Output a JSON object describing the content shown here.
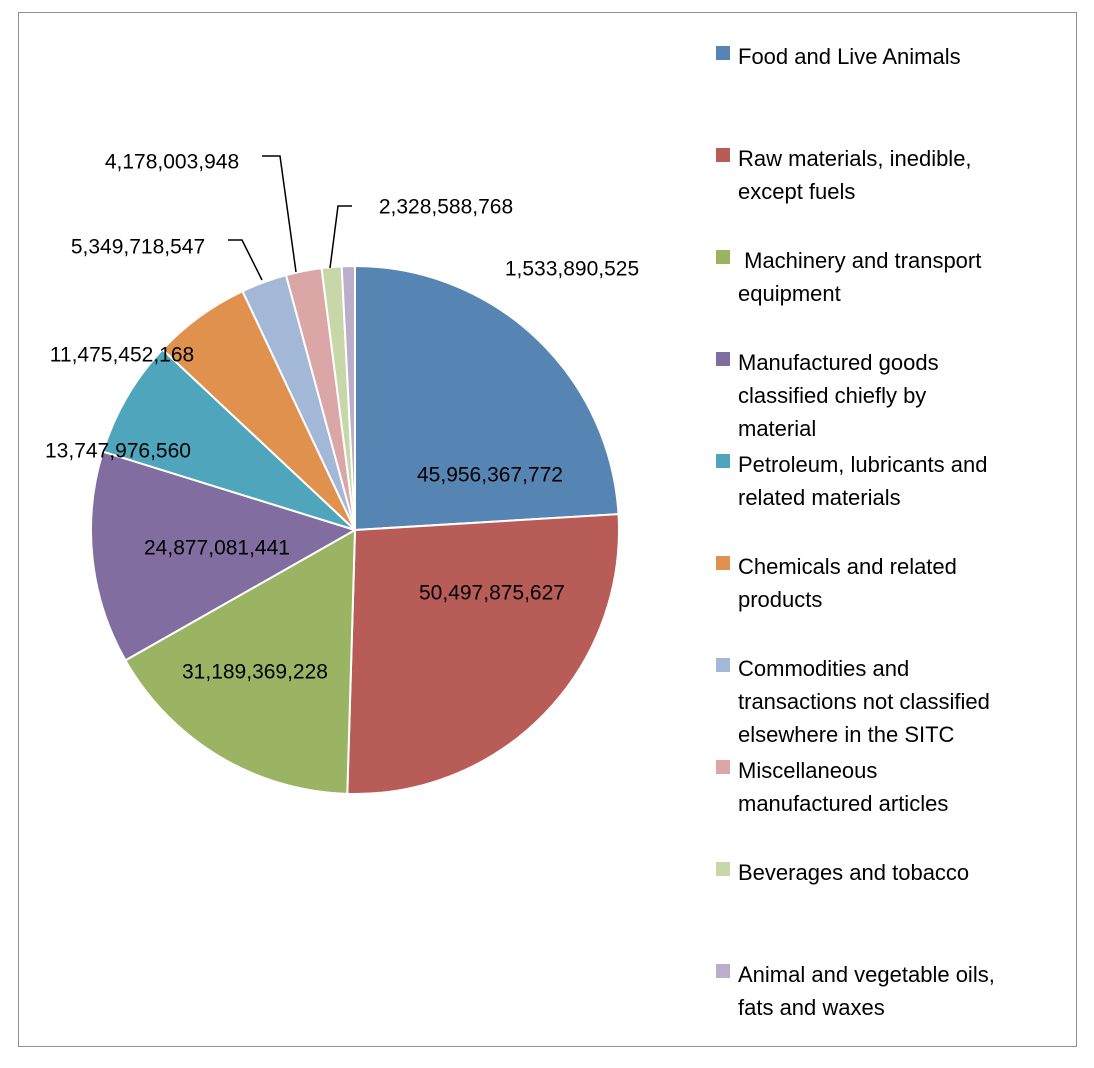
{
  "chart_data": {
    "type": "pie",
    "title": "",
    "slices": [
      {
        "label": "Food and Live Animals",
        "value": 45956367772,
        "value_label": "45,956,367,772",
        "color": "#5685b3"
      },
      {
        "label": "Raw materials, inedible, except fuels",
        "value": 50497875627,
        "value_label": "50,497,875,627",
        "color": "#b85c58"
      },
      {
        "label": " Machinery and transport equipment",
        "value": 31189369228,
        "value_label": "31,189,369,228",
        "color": "#9ab463"
      },
      {
        "label": "Manufactured goods classified chiefly by material",
        "value": 24877081441,
        "value_label": "24,877,081,441",
        "color": "#826da0"
      },
      {
        "label": "Petroleum, lubricants and related materials",
        "value": 13747976560,
        "value_label": "13,747,976,560",
        "color": "#4fa6bc"
      },
      {
        "label": "Chemicals and related products",
        "value": 11475452168,
        "value_label": "11,475,452,168",
        "color": "#e0914e"
      },
      {
        "label": "Commodities and transactions not classified elsewhere in the SITC",
        "value": 5349718547,
        "value_label": "5,349,718,547",
        "color": "#a3b7d7"
      },
      {
        "label": "Miscellaneous manufactured articles",
        "value": 4178003948,
        "value_label": "4,178,003,948",
        "color": "#dba7a6"
      },
      {
        "label": "Beverages and tobacco",
        "value": 2328588768,
        "value_label": "2,328,588,768",
        "color": "#c7d7a8"
      },
      {
        "label": "Animal and vegetable oils, fats and waxes",
        "value": 1533890525,
        "value_label": "1,533,890,525",
        "color": "#bbaecb"
      }
    ],
    "legend_position": "right"
  },
  "legend": {
    "items": [
      {
        "text": "Food and Live Animals",
        "color": "#5685b3"
      },
      {
        "text": "Raw materials, inedible,\nexcept fuels",
        "color": "#b85c58"
      },
      {
        "text": " Machinery and transport\nequipment",
        "color": "#9ab463"
      },
      {
        "text": "Manufactured goods\nclassified chiefly by\nmaterial",
        "color": "#826da0"
      },
      {
        "text": "Petroleum, lubricants and\nrelated materials",
        "color": "#4fa6bc"
      },
      {
        "text": "Chemicals and related\nproducts",
        "color": "#e0914e"
      },
      {
        "text": "Commodities and\ntransactions not classified\nelsewhere in the SITC",
        "color": "#a3b7d7"
      },
      {
        "text": "Miscellaneous\nmanufactured articles",
        "color": "#dba7a6"
      },
      {
        "text": "Beverages and tobacco",
        "color": "#c7d7a8"
      },
      {
        "text": "Animal and vegetable oils,\nfats and waxes",
        "color": "#bbaecb"
      }
    ]
  }
}
